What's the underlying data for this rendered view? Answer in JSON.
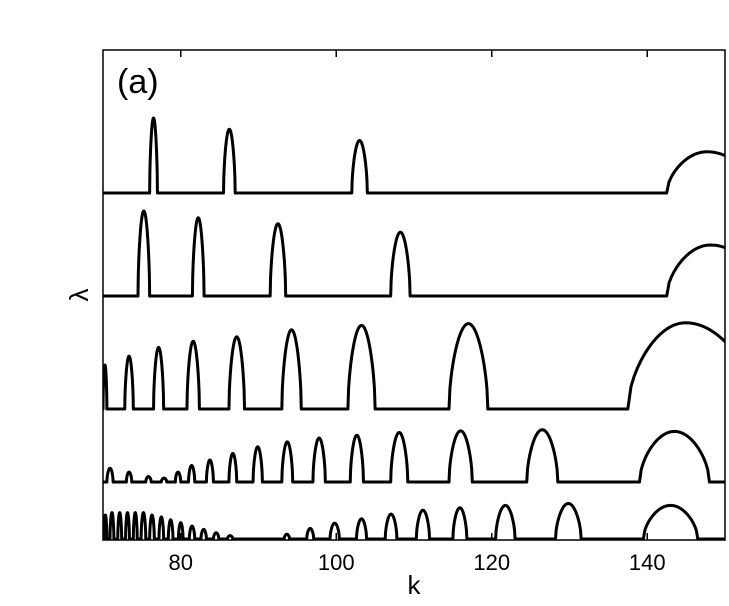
{
  "chart_data": {
    "type": "line",
    "panel_label": "(a)",
    "xlabel": "k",
    "ylabel": "λ",
    "xlim": [
      70,
      150
    ],
    "xticks": [
      "80",
      "100",
      "120",
      "140"
    ],
    "xtick_values": [
      80,
      100,
      120,
      140
    ],
    "grid": false,
    "series": [
      {
        "peaks": [
          {
            "x0": 76.0,
            "x1": 77.0,
            "h": 1.0
          },
          {
            "x0": 85.5,
            "x1": 87.0,
            "h": 0.85
          },
          {
            "x0": 102.0,
            "x1": 104.0,
            "h": 0.7
          },
          {
            "x0": 142.5,
            "x1": 154.0,
            "h": 0.55,
            "skew": 0.45
          }
        ]
      },
      {
        "peaks": [
          {
            "x0": 74.5,
            "x1": 76.0,
            "h": 1.0
          },
          {
            "x0": 81.5,
            "x1": 83.0,
            "h": 0.92
          },
          {
            "x0": 91.5,
            "x1": 93.5,
            "h": 0.85
          },
          {
            "x0": 107.0,
            "x1": 109.5,
            "h": 0.75
          },
          {
            "x0": 142.5,
            "x1": 155.0,
            "h": 0.6,
            "skew": 0.45
          }
        ]
      },
      {
        "peaks": [
          {
            "x0": 70.0,
            "x1": 70.5,
            "h": 0.5
          },
          {
            "x0": 72.8,
            "x1": 73.9,
            "h": 0.6
          },
          {
            "x0": 76.5,
            "x1": 77.8,
            "h": 0.7
          },
          {
            "x0": 80.8,
            "x1": 82.4,
            "h": 0.77
          },
          {
            "x0": 86.2,
            "x1": 88.2,
            "h": 0.82
          },
          {
            "x0": 93.0,
            "x1": 95.5,
            "h": 0.9
          },
          {
            "x0": 101.5,
            "x1": 105.0,
            "h": 0.95
          },
          {
            "x0": 114.5,
            "x1": 119.5,
            "h": 0.97
          },
          {
            "x0": 137.5,
            "x1": 154.0,
            "h": 0.98,
            "skew": 0.45
          }
        ]
      },
      {
        "peaks": [
          {
            "x0": 70.5,
            "x1": 71.3,
            "h": 0.25
          },
          {
            "x0": 73.0,
            "x1": 73.7,
            "h": 0.18
          },
          {
            "x0": 75.5,
            "x1": 76.2,
            "h": 0.1
          },
          {
            "x0": 77.5,
            "x1": 78.2,
            "h": 0.07
          },
          {
            "x0": 79.3,
            "x1": 80.0,
            "h": 0.18
          },
          {
            "x0": 81.0,
            "x1": 81.8,
            "h": 0.3
          },
          {
            "x0": 83.3,
            "x1": 84.2,
            "h": 0.4
          },
          {
            "x0": 86.2,
            "x1": 87.2,
            "h": 0.52
          },
          {
            "x0": 89.3,
            "x1": 90.5,
            "h": 0.64
          },
          {
            "x0": 93.0,
            "x1": 94.4,
            "h": 0.73
          },
          {
            "x0": 97.0,
            "x1": 98.6,
            "h": 0.8
          },
          {
            "x0": 101.8,
            "x1": 103.5,
            "h": 0.85
          },
          {
            "x0": 107.0,
            "x1": 109.2,
            "h": 0.9
          },
          {
            "x0": 114.5,
            "x1": 117.5,
            "h": 0.93
          },
          {
            "x0": 124.5,
            "x1": 128.5,
            "h": 0.95
          },
          {
            "x0": 139.0,
            "x1": 148.0,
            "h": 0.92
          }
        ]
      },
      {
        "peaks": [
          {
            "x0": 70.1,
            "x1": 70.5,
            "h": 0.5
          },
          {
            "x0": 70.9,
            "x1": 71.4,
            "h": 0.55
          },
          {
            "x0": 71.9,
            "x1": 72.4,
            "h": 0.55
          },
          {
            "x0": 72.9,
            "x1": 73.4,
            "h": 0.55
          },
          {
            "x0": 73.9,
            "x1": 74.4,
            "h": 0.55
          },
          {
            "x0": 74.9,
            "x1": 75.5,
            "h": 0.55
          },
          {
            "x0": 76.0,
            "x1": 76.6,
            "h": 0.5
          },
          {
            "x0": 77.2,
            "x1": 77.8,
            "h": 0.46
          },
          {
            "x0": 78.4,
            "x1": 79.0,
            "h": 0.4
          },
          {
            "x0": 79.7,
            "x1": 80.3,
            "h": 0.34
          },
          {
            "x0": 81.1,
            "x1": 81.8,
            "h": 0.27
          },
          {
            "x0": 82.6,
            "x1": 83.3,
            "h": 0.2
          },
          {
            "x0": 84.2,
            "x1": 84.9,
            "h": 0.13
          },
          {
            "x0": 86.0,
            "x1": 86.7,
            "h": 0.07
          },
          {
            "x0": 93.3,
            "x1": 94.0,
            "h": 0.1
          },
          {
            "x0": 96.2,
            "x1": 97.1,
            "h": 0.22
          },
          {
            "x0": 99.2,
            "x1": 100.4,
            "h": 0.33
          },
          {
            "x0": 102.6,
            "x1": 103.9,
            "h": 0.42
          },
          {
            "x0": 106.3,
            "x1": 107.8,
            "h": 0.52
          },
          {
            "x0": 110.3,
            "x1": 112.0,
            "h": 0.6
          },
          {
            "x0": 115.0,
            "x1": 116.8,
            "h": 0.65
          },
          {
            "x0": 120.5,
            "x1": 123.0,
            "h": 0.7
          },
          {
            "x0": 128.2,
            "x1": 131.5,
            "h": 0.74
          },
          {
            "x0": 139.5,
            "x1": 146.5,
            "h": 0.7
          }
        ]
      }
    ]
  }
}
